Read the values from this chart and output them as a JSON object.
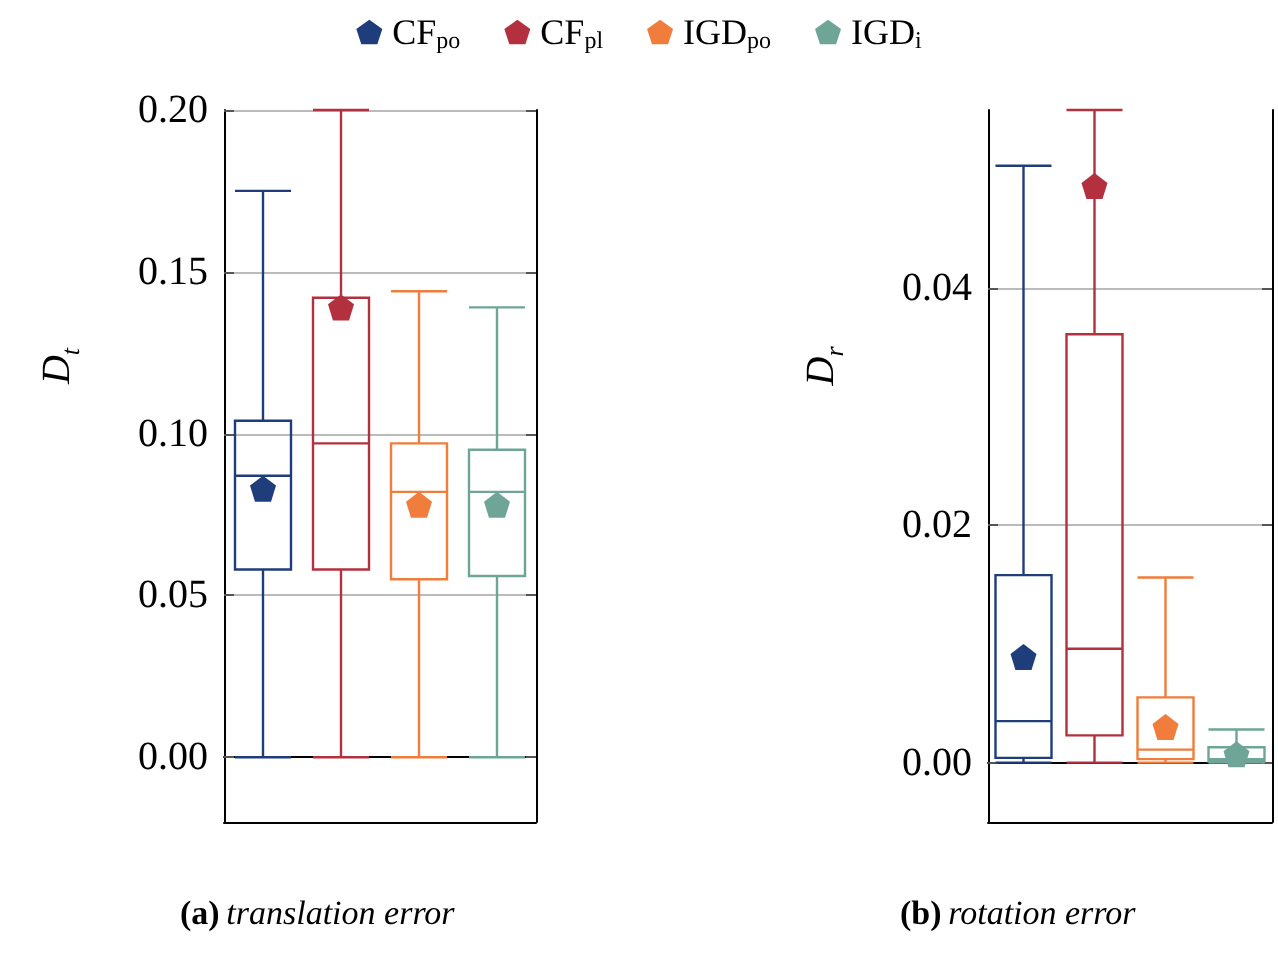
{
  "chart_data": [
    {
      "type": "box",
      "ylabel": "D$_{t}$",
      "categories": [
        null
      ],
      "legend": "top",
      "grid": "y",
      "marker": "pentagon",
      "ylim": [
        -0.02,
        0.2
      ],
      "yticks": [
        {
          "value": 0,
          "label": "0.00"
        },
        {
          "value": 0.05,
          "label": "0.05"
        },
        {
          "value": 0.1,
          "label": "0.10"
        },
        {
          "value": 0.15,
          "label": "0.15"
        },
        {
          "value": 0.2,
          "label": "0.20"
        }
      ],
      "annotations": [
        "(a) translation error"
      ],
      "series": [
        {
          "name": "CF$_{po}$",
          "color": "#1f3d7a",
          "boxes": [
            {
              "low": 0,
              "q1": 0.058,
              "median": 0.087,
              "q3": 0.104,
              "high": 0.175,
              "mean": 0.083
            }
          ]
        },
        {
          "name": "CF$_{pl}$",
          "color": "#b3303f",
          "boxes": [
            {
              "low": 0,
              "q1": 0.058,
              "median": 0.097,
              "q3": 0.142,
              "high": 0.2,
              "mean": 0.139
            }
          ]
        },
        {
          "name": "IGD$_{po}$",
          "color": "#f07d3c",
          "boxes": [
            {
              "low": 0,
              "q1": 0.055,
              "median": 0.082,
              "q3": 0.097,
              "high": 0.144,
              "mean": 0.078
            }
          ]
        },
        {
          "name": "IGD$_{i}$",
          "color": "#6fa596",
          "boxes": [
            {
              "low": 0,
              "q1": 0.056,
              "median": 0.082,
              "q3": 0.095,
              "high": 0.139,
              "mean": 0.078
            }
          ]
        }
      ]
    },
    {
      "type": "box",
      "ylabel": "D$_{r}$",
      "categories": [
        null
      ],
      "grid": "y",
      "marker": "pentagon",
      "ylim": [
        -0.005,
        0.055
      ],
      "yticks": [
        {
          "value": 0,
          "label": "0.00"
        },
        {
          "value": 0.02,
          "label": "0.02"
        },
        {
          "value": 0.04,
          "label": "0.04"
        }
      ],
      "annotations": [
        "(b) rotation error"
      ],
      "series": [
        {
          "color": "#1f3d7a",
          "boxes": [
            {
              "low": 0,
              "q1": 0.0004,
              "median": 0.0035,
              "q3": 0.0158,
              "high": 0.0503,
              "mean": 0.0089
            }
          ]
        },
        {
          "color": "#b3303f",
          "boxes": [
            {
              "low": 0,
              "q1": 0.0023,
              "median": 0.0096,
              "q3": 0.0361,
              "high": 0.055,
              "mean": 0.0486
            }
          ]
        },
        {
          "color": "#f07d3c",
          "boxes": [
            {
              "low": 0,
              "q1": 0.0003,
              "median": 0.0011,
              "q3": 0.0055,
              "high": 0.0156,
              "mean": 0.003
            }
          ]
        },
        {
          "color": "#6fa596",
          "boxes": [
            {
              "low": 0,
              "q1": 0.0001,
              "median": 0.0003,
              "q3": 0.0013,
              "high": 0.0028,
              "mean": 0.0007
            }
          ]
        }
      ]
    }
  ]
}
